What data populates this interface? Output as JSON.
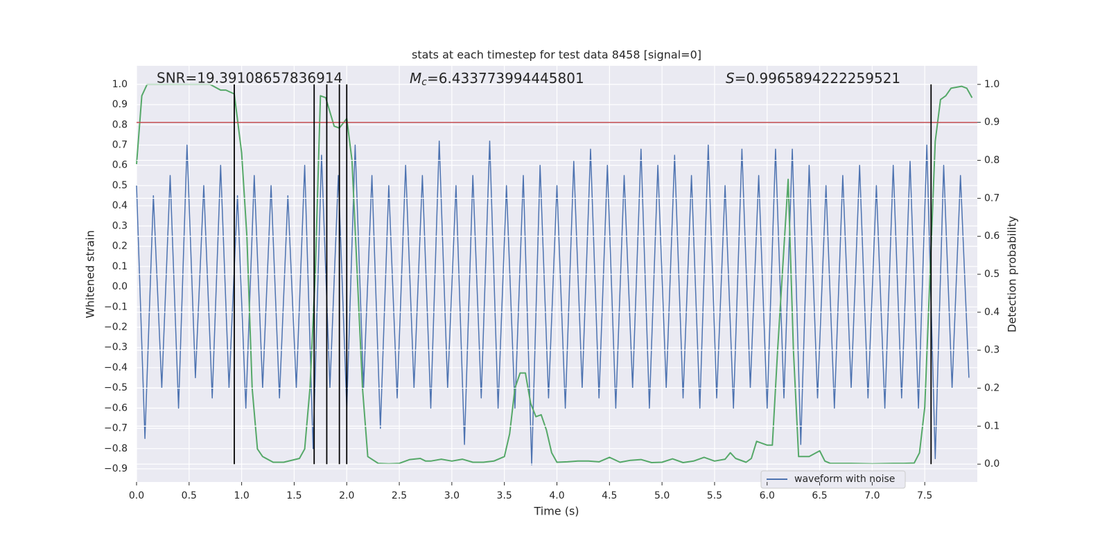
{
  "chart_data": {
    "type": "line",
    "title": "stats at each timestep for test data 8458 [signal=0]",
    "xlabel": "Time (s)",
    "ylabel": "Whitened strain",
    "y2label": "Detection probability",
    "annotations": [
      {
        "text": "SNR=19.39108657836914"
      },
      {
        "name": "M",
        "sub": "c",
        "text": "=6.433773994445801"
      },
      {
        "name": "S",
        "text": "=0.9965894222259521"
      }
    ],
    "xlim": [
      0,
      8
    ],
    "ylim": [
      -0.965,
      1.092
    ],
    "y2lim": [
      -0.047,
      1.049
    ],
    "xticks": [
      {
        "value": 0,
        "label": "0.0"
      },
      0.5,
      {
        "value": 1,
        "label": "1.0"
      },
      1.5,
      {
        "value": 2,
        "label": "2.0"
      },
      2.5,
      {
        "value": 3,
        "label": "3.0"
      },
      3.5,
      {
        "value": 4,
        "label": "4.0"
      },
      4.5,
      {
        "value": 5,
        "label": "5.0"
      },
      5.5,
      {
        "value": 6,
        "label": "6.0"
      },
      6.5,
      {
        "value": 7,
        "label": "7.0"
      },
      7.5
    ],
    "yticks": [
      {
        "value": -0.9,
        "label": "−0.9"
      },
      {
        "value": -0.8,
        "label": "−0.8"
      },
      {
        "value": -0.7,
        "label": "−0.7"
      },
      {
        "value": -0.6,
        "label": "−0.6"
      },
      {
        "value": -0.5,
        "label": "−0.5"
      },
      {
        "value": -0.4,
        "label": "−0.4"
      },
      {
        "value": -0.3,
        "label": "−0.3"
      },
      {
        "value": -0.2,
        "label": "−0.2"
      },
      {
        "value": -0.1,
        "label": "−0.1"
      },
      {
        "value": 0,
        "label": "0.0"
      },
      0.1,
      0.2,
      0.3,
      0.4,
      0.5,
      0.6,
      0.7,
      0.8,
      0.9,
      {
        "value": 1,
        "label": "1.0"
      }
    ],
    "y2ticks": [
      {
        "value": 0,
        "label": "0.0"
      },
      0.1,
      0.2,
      0.3,
      0.4,
      0.5,
      0.6,
      0.7,
      0.8,
      0.9,
      {
        "value": 1,
        "label": "1.0"
      }
    ],
    "grid": true,
    "legend": "lower right",
    "threshold": {
      "value": 0.9,
      "color": "#c44e52",
      "axis": "y2"
    },
    "vlines": {
      "x": [
        0.93,
        1.69,
        1.81,
        1.93,
        2.0,
        7.56
      ],
      "ymin": 0,
      "ymax": 1,
      "color": "#000000",
      "axis": "y2"
    },
    "series": [
      {
        "name": "waveform with noise",
        "color": "#4c72b0",
        "x": [
          0,
          0.08,
          0.16,
          0.24,
          0.32,
          0.4,
          0.48,
          0.56,
          0.64,
          0.72,
          0.8,
          0.88,
          0.96,
          1.04,
          1.12,
          1.2,
          1.28,
          1.36,
          1.44,
          1.52,
          1.6,
          1.68,
          1.76,
          1.84,
          1.92,
          2,
          2.08,
          2.16,
          2.24,
          2.32,
          2.4,
          2.48,
          2.56,
          2.64,
          2.72,
          2.8,
          2.88,
          2.96,
          3.04,
          3.12,
          3.2,
          3.28,
          3.36,
          3.44,
          3.52,
          3.6,
          3.68,
          3.76,
          3.84,
          3.92,
          4,
          4.08,
          4.16,
          4.24,
          4.32,
          4.4,
          4.48,
          4.56,
          4.64,
          4.72,
          4.8,
          4.88,
          4.96,
          5.04,
          5.12,
          5.2,
          5.28,
          5.36,
          5.44,
          5.52,
          5.6,
          5.68,
          5.76,
          5.84,
          5.92,
          6,
          6.08,
          6.16,
          6.24,
          6.32,
          6.4,
          6.48,
          6.56,
          6.64,
          6.72,
          6.8,
          6.88,
          6.96,
          7.04,
          7.12,
          7.2,
          7.28,
          7.36,
          7.44,
          7.52,
          7.6,
          7.68,
          7.76,
          7.84,
          7.92
        ],
        "values": [
          0.5,
          -0.75,
          0.45,
          -0.5,
          0.55,
          -0.6,
          0.7,
          -0.45,
          0.5,
          -0.55,
          0.6,
          -0.5,
          0.45,
          -0.6,
          0.55,
          -0.5,
          0.5,
          -0.55,
          0.45,
          -0.5,
          0.6,
          -0.8,
          0.65,
          -0.5,
          0.55,
          -0.6,
          0.7,
          -0.5,
          0.55,
          -0.7,
          0.5,
          -0.55,
          0.6,
          -0.5,
          0.55,
          -0.6,
          0.72,
          -0.5,
          0.5,
          -0.78,
          0.55,
          -0.55,
          0.72,
          -0.6,
          0.5,
          -0.6,
          0.55,
          -0.88,
          0.6,
          -0.55,
          0.5,
          -0.6,
          0.62,
          -0.5,
          0.68,
          -0.55,
          0.6,
          -0.6,
          0.55,
          -0.5,
          0.68,
          -0.6,
          0.6,
          -0.5,
          0.65,
          -0.55,
          0.55,
          -0.6,
          0.7,
          -0.55,
          0.5,
          -0.6,
          0.68,
          -0.5,
          0.55,
          -0.6,
          0.68,
          -0.55,
          0.68,
          -0.78,
          0.6,
          -0.55,
          0.5,
          -0.6,
          0.55,
          -0.5,
          0.6,
          -0.55,
          0.5,
          -0.6,
          0.6,
          -0.55,
          0.62,
          -0.6,
          0.7,
          -0.85,
          0.6,
          -0.5,
          0.55,
          -0.45
        ]
      },
      {
        "color": "#55a868",
        "axis": "y2",
        "x": [
          0,
          0.05,
          0.1,
          0.6,
          0.7,
          0.8,
          0.85,
          0.93,
          1,
          1.05,
          1.1,
          1.15,
          1.2,
          1.3,
          1.4,
          1.55,
          1.6,
          1.65,
          1.7,
          1.75,
          1.8,
          1.88,
          1.93,
          2,
          2.05,
          2.1,
          2.15,
          2.2,
          2.3,
          2.4,
          2.5,
          2.6,
          2.7,
          2.75,
          2.8,
          2.9,
          3,
          3.1,
          3.2,
          3.3,
          3.4,
          3.5,
          3.55,
          3.6,
          3.65,
          3.7,
          3.75,
          3.8,
          3.85,
          3.9,
          3.95,
          4,
          4.1,
          4.2,
          4.3,
          4.4,
          4.5,
          4.6,
          4.7,
          4.8,
          4.9,
          5,
          5.1,
          5.2,
          5.3,
          5.4,
          5.5,
          5.6,
          5.65,
          5.7,
          5.8,
          5.85,
          5.9,
          6,
          6.05,
          6.1,
          6.2,
          6.25,
          6.3,
          6.4,
          6.5,
          6.55,
          6.6,
          6.8,
          7,
          7.2,
          7.3,
          7.4,
          7.45,
          7.5,
          7.55,
          7.6,
          7.65,
          7.7,
          7.75,
          7.85,
          7.9,
          7.95
        ],
        "values": [
          0.79,
          0.97,
          1,
          1,
          1,
          0.985,
          0.985,
          0.975,
          0.82,
          0.6,
          0.2,
          0.04,
          0.02,
          0.005,
          0.005,
          0.015,
          0.04,
          0.2,
          0.5,
          0.97,
          0.965,
          0.89,
          0.885,
          0.91,
          0.8,
          0.5,
          0.2,
          0.02,
          0.002,
          0.001,
          0.002,
          0.012,
          0.015,
          0.008,
          0.008,
          0.013,
          0.008,
          0.013,
          0.005,
          0.005,
          0.008,
          0.02,
          0.08,
          0.2,
          0.24,
          0.24,
          0.16,
          0.125,
          0.13,
          0.09,
          0.03,
          0.005,
          0.006,
          0.008,
          0.008,
          0.006,
          0.018,
          0.005,
          0.01,
          0.012,
          0.004,
          0.005,
          0.014,
          0.004,
          0.008,
          0.018,
          0.008,
          0.013,
          0.03,
          0.015,
          0.005,
          0.015,
          0.06,
          0.05,
          0.05,
          0.3,
          0.75,
          0.3,
          0.02,
          0.02,
          0.035,
          0.008,
          0.002,
          0.002,
          0.001,
          0.002,
          0.002,
          0.003,
          0.03,
          0.15,
          0.5,
          0.85,
          0.96,
          0.97,
          0.99,
          0.995,
          0.99,
          0.965
        ]
      }
    ]
  }
}
